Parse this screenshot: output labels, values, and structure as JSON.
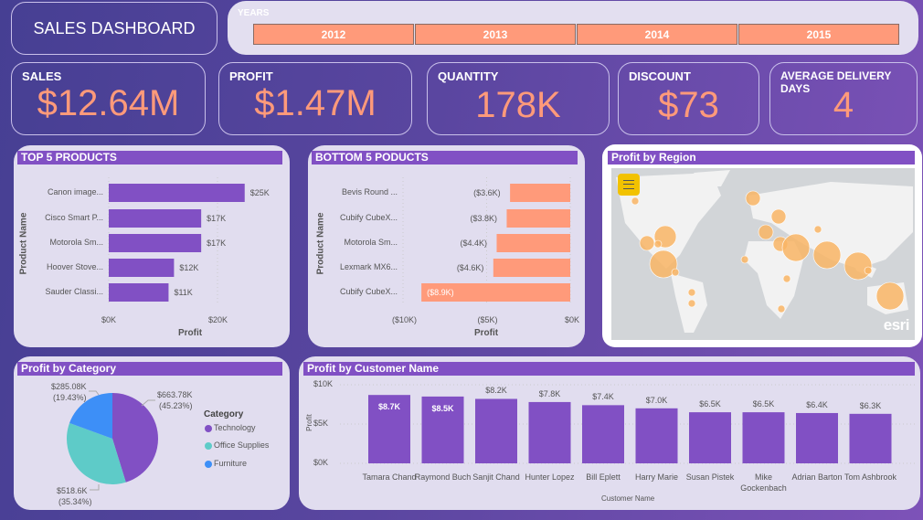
{
  "header": {
    "title": "SALES DASHBOARD"
  },
  "years": {
    "label": "YEARS",
    "options": [
      "2012",
      "2013",
      "2014",
      "2015"
    ]
  },
  "kpis": [
    {
      "label": "SALES",
      "value": "$12.64M"
    },
    {
      "label": "PROFIT",
      "value": "$1.47M"
    },
    {
      "label": "QUANTITY",
      "value": "178K"
    },
    {
      "label": "DISCOUNT",
      "value": "$73"
    },
    {
      "label": "AVERAGE DELIVERY DAYS",
      "value": "4"
    }
  ],
  "colors": {
    "accent": "#8150c4",
    "kpi": "#ff9a7a",
    "technology": "#8150c4",
    "office_supplies": "#5ecbc8",
    "furniture": "#3d8ff7",
    "bubble": "#f9b565"
  },
  "map": {
    "title": "Profit by Region",
    "menu_icon": "hamburger-icon",
    "attribution": "esri"
  },
  "chart_data": [
    {
      "type": "bar",
      "orientation": "horizontal",
      "title": "TOP 5 PRODUCTS",
      "xlabel": "Profit",
      "ylabel": "Product Name",
      "categories": [
        "Canon image...",
        "Cisco Smart P...",
        "Motorola Sm...",
        "Hoover Stove...",
        "Sauder Classi..."
      ],
      "values": [
        25000,
        17000,
        17000,
        12000,
        11000
      ],
      "labels": [
        "$25K",
        "$17K",
        "$17K",
        "$12K",
        "$11K"
      ],
      "ticks": [
        "$0K",
        "$20K"
      ],
      "xlim": [
        0,
        25000
      ]
    },
    {
      "type": "bar",
      "orientation": "horizontal",
      "title": "BOTTOM 5 PODUCTS",
      "xlabel": "Profit",
      "ylabel": "Product Name",
      "categories": [
        "Bevis Round ...",
        "Cubify CubeX...",
        "Motorola Sm...",
        "Lexmark MX6...",
        "Cubify CubeX..."
      ],
      "values": [
        -3600,
        -3800,
        -4400,
        -4600,
        -8900
      ],
      "labels": [
        "($3.6K)",
        "($3.8K)",
        "($4.4K)",
        "($4.6K)",
        "($8.9K)"
      ],
      "ticks": [
        "($10K)",
        "($5K)",
        "$0K"
      ],
      "xlim": [
        -10000,
        0
      ]
    },
    {
      "type": "pie",
      "title": "Profit by Category",
      "legend_title": "Category",
      "categories": [
        "Technology",
        "Office Supplies",
        "Furniture"
      ],
      "values": [
        663780,
        518600,
        285080
      ],
      "labels": [
        "$663.78K",
        "$518.6K",
        "$285.08K"
      ],
      "percents": [
        "(45.23%)",
        "(35.34%)",
        "(19.43%)"
      ]
    },
    {
      "type": "bar",
      "title": "Profit by Customer Name",
      "xlabel": "Customer Name",
      "ylabel": "Profit",
      "categories": [
        "Tamara Chand",
        "Raymond Buch",
        "Sanjit Chand",
        "Hunter Lopez",
        "Bill Eplett",
        "Harry Marie",
        "Susan Pistek",
        "Mike Gockenbach",
        "Adrian Barton",
        "Tom Ashbrook"
      ],
      "values": [
        8700,
        8500,
        8200,
        7800,
        7400,
        7000,
        6500,
        6500,
        6400,
        6300
      ],
      "labels": [
        "$8.7K",
        "$8.5K",
        "$8.2K",
        "$7.8K",
        "$7.4K",
        "$7.0K",
        "$6.5K",
        "$6.5K",
        "$6.4K",
        "$6.3K"
      ],
      "ticks": [
        "$0K",
        "$5K",
        "$10K"
      ],
      "ylim": [
        0,
        10000
      ]
    }
  ]
}
